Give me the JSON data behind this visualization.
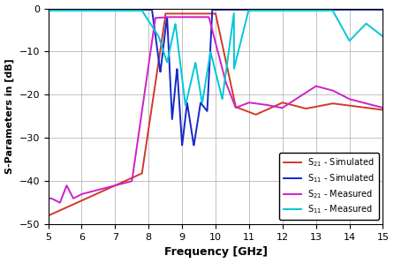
{
  "xlabel": "Frequency [GHz]",
  "ylabel": "S-Parameters in [dB]",
  "xlim": [
    5,
    15
  ],
  "ylim": [
    -50,
    0
  ],
  "yticks": [
    0,
    -10,
    -20,
    -30,
    -40,
    -50
  ],
  "xticks": [
    5,
    6,
    7,
    8,
    9,
    10,
    11,
    12,
    13,
    14,
    15
  ],
  "legend": [
    {
      "label": "S$_{21}$ - Simulated",
      "color": "#d0392a"
    },
    {
      "label": "S$_{11}$ - Simulated",
      "color": "#1428c8"
    },
    {
      "label": "S$_{21}$ - Measured",
      "color": "#d020c8"
    },
    {
      "label": "S$_{11}$ - Measured",
      "color": "#00c8d8"
    }
  ],
  "background_color": "#ffffff",
  "grid_color": "#aaaaaa"
}
